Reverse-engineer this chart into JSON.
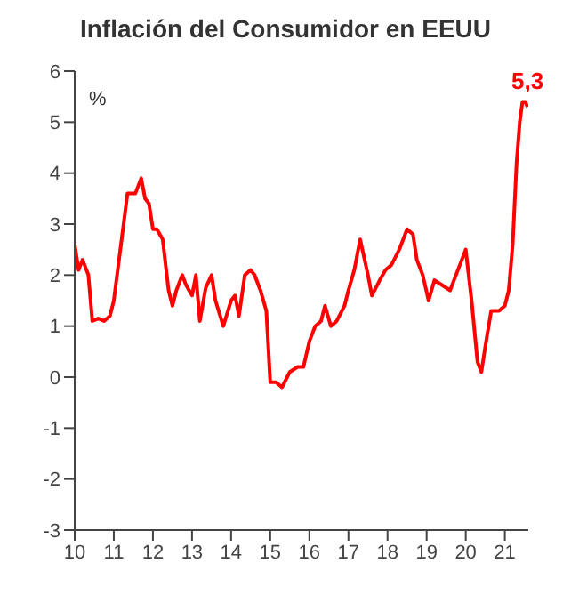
{
  "chart_data": {
    "type": "line",
    "title": "Inflación del Consumidor en EEUU",
    "ylabel": "%",
    "x": [
      10.0,
      10.1,
      10.2,
      10.35,
      10.45,
      10.6,
      10.75,
      10.9,
      11.0,
      11.1,
      11.2,
      11.35,
      11.55,
      11.7,
      11.8,
      11.9,
      12.0,
      12.1,
      12.25,
      12.4,
      12.5,
      12.6,
      12.75,
      12.85,
      13.0,
      13.1,
      13.2,
      13.35,
      13.5,
      13.6,
      13.8,
      14.0,
      14.1,
      14.2,
      14.35,
      14.5,
      14.6,
      14.75,
      14.9,
      15.0,
      15.15,
      15.3,
      15.5,
      15.7,
      15.85,
      16.0,
      16.15,
      16.3,
      16.4,
      16.55,
      16.7,
      16.9,
      17.0,
      17.15,
      17.3,
      17.5,
      17.6,
      17.8,
      17.95,
      18.1,
      18.3,
      18.5,
      18.65,
      18.75,
      18.9,
      19.05,
      19.2,
      19.4,
      19.6,
      19.8,
      20.0,
      20.15,
      20.3,
      20.4,
      20.5,
      20.65,
      20.85,
      21.0,
      21.1,
      21.2,
      21.3,
      21.38,
      21.45,
      21.52,
      21.58
    ],
    "series": [
      {
        "color": "#ff0000",
        "values": [
          2.6,
          2.1,
          2.3,
          2.0,
          1.1,
          1.15,
          1.1,
          1.2,
          1.5,
          2.1,
          2.7,
          3.6,
          3.6,
          3.9,
          3.5,
          3.4,
          2.9,
          2.9,
          2.7,
          1.7,
          1.4,
          1.7,
          2.0,
          1.8,
          1.6,
          2.0,
          1.1,
          1.75,
          2.0,
          1.5,
          1.0,
          1.5,
          1.6,
          1.2,
          2.0,
          2.1,
          2.0,
          1.7,
          1.3,
          -0.1,
          -0.1,
          -0.2,
          0.1,
          0.2,
          0.2,
          0.7,
          1.0,
          1.1,
          1.4,
          1.0,
          1.1,
          1.4,
          1.7,
          2.1,
          2.7,
          2.0,
          1.6,
          1.9,
          2.1,
          2.2,
          2.5,
          2.9,
          2.8,
          2.3,
          2.0,
          1.5,
          1.9,
          1.8,
          1.7,
          2.1,
          2.5,
          1.5,
          0.3,
          0.1,
          0.6,
          1.3,
          1.3,
          1.4,
          1.7,
          2.6,
          4.2,
          5.0,
          5.4,
          5.4,
          5.3
        ]
      }
    ],
    "xlim": [
      10,
      21.6
    ],
    "xticks": [
      10,
      11,
      12,
      13,
      14,
      15,
      16,
      17,
      18,
      19,
      20,
      21
    ],
    "ylim": [
      -3,
      6
    ],
    "yticks": [
      -3,
      -2,
      -1,
      0,
      1,
      2,
      3,
      4,
      5,
      6
    ],
    "annotations": [
      {
        "text": "5,3",
        "x": 21.58,
        "y": 5.3
      }
    ],
    "grid": false,
    "legend": false,
    "marker": "none",
    "line_style": "solid"
  }
}
